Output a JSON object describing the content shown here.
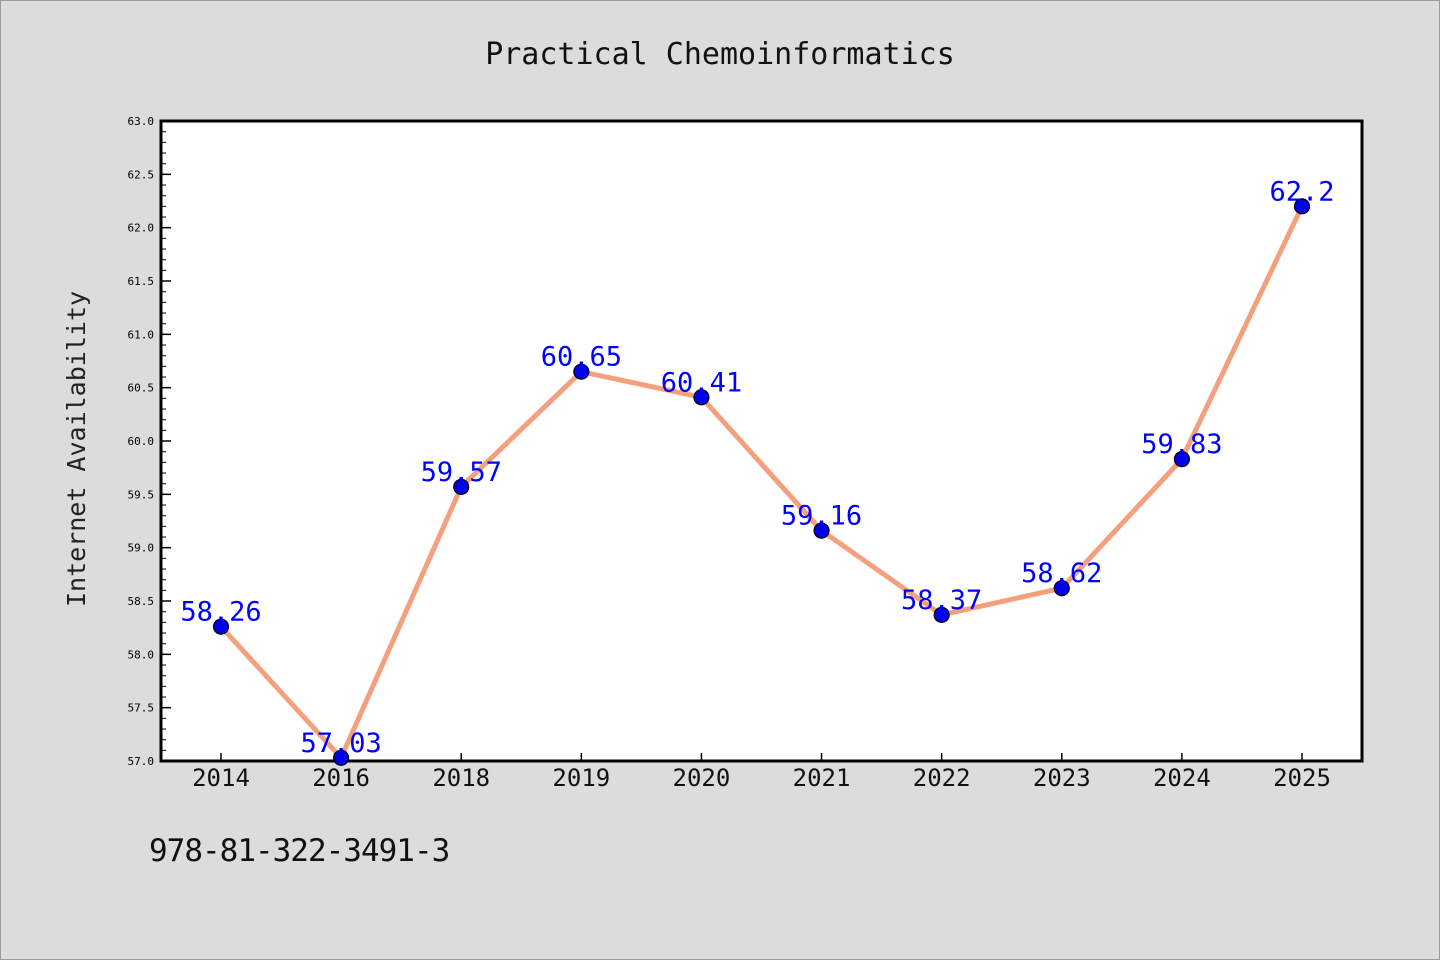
{
  "title": "Practical Chemoinformatics",
  "isbn": "978-81-322-3491-3",
  "colors": {
    "page_bg": "#dcdcdc",
    "plot_bg": "#ffffff",
    "line": "#f4a07f",
    "marker": "#0000ee",
    "label": "#0000ff"
  },
  "chart_data": {
    "type": "line",
    "title": "Practical Chemoinformatics",
    "xlabel": "",
    "ylabel": "Internet Availability",
    "categories": [
      "2014",
      "2016",
      "2018",
      "2019",
      "2020",
      "2021",
      "2022",
      "2023",
      "2024",
      "2025"
    ],
    "values": [
      58.26,
      57.03,
      59.57,
      60.65,
      60.41,
      59.16,
      58.37,
      58.62,
      59.83,
      62.2
    ],
    "data_labels": [
      "58.26",
      "57.03",
      "59.57",
      "60.65",
      "60.41",
      "59.16",
      "58.37",
      "58.62",
      "59.83",
      "62.2"
    ],
    "ylim": [
      57.0,
      63.0
    ],
    "yticks": [
      "57.0",
      "57.5",
      "58.0",
      "58.5",
      "59.0",
      "59.5",
      "60.0",
      "60.5",
      "61.0",
      "61.5",
      "62.0",
      "62.5",
      "63.0"
    ],
    "grid": false,
    "legend": "none"
  }
}
